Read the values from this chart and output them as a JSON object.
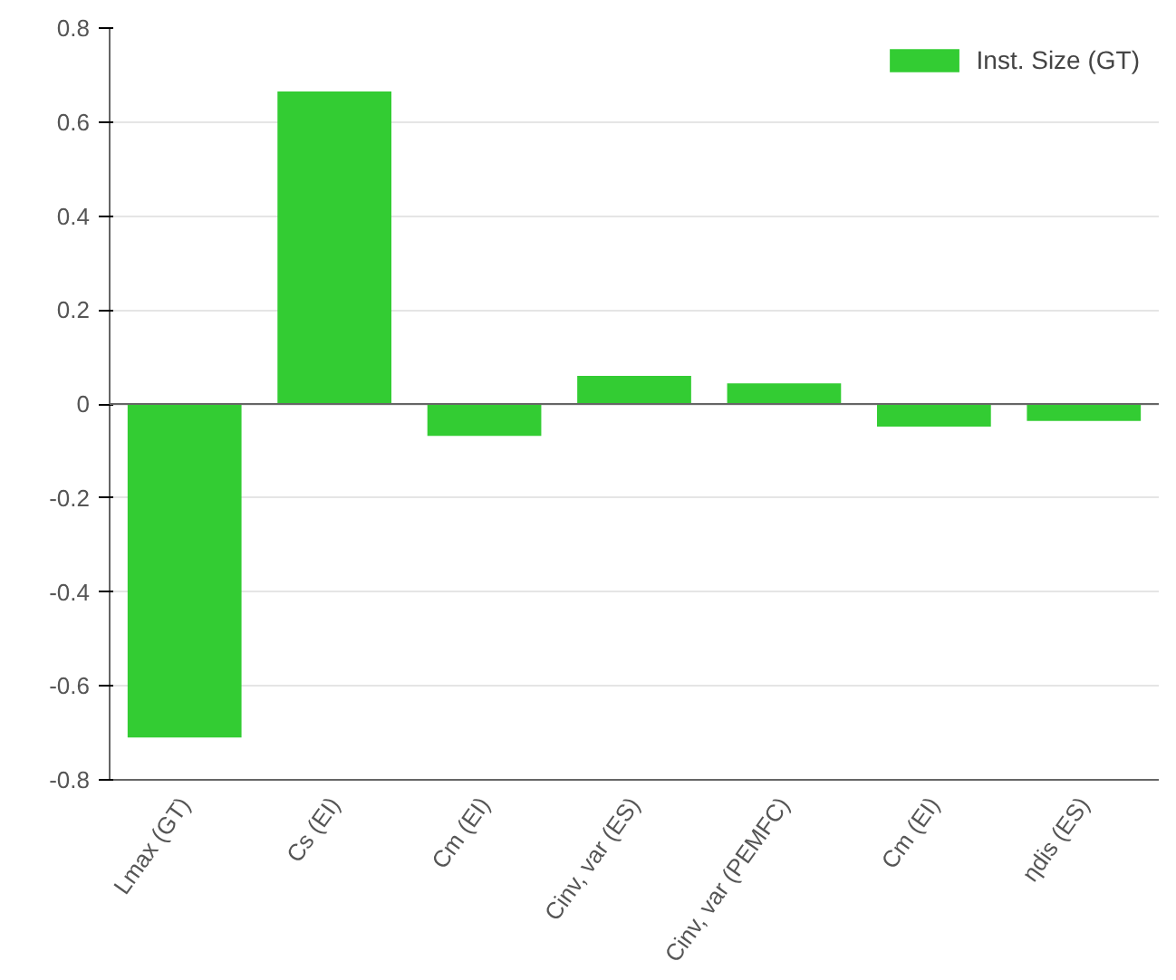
{
  "chart_data": {
    "type": "bar",
    "categories": [
      "Lmax (GT)",
      "Cs (EI)",
      "Cm (EI)",
      "Cinv, var (ES)",
      "Cinv, var (PEMFC)",
      "Cm (EI)",
      "ηdis (ES)"
    ],
    "series": [
      {
        "name": "Inst. Size (GT)",
        "color": "#33cc33",
        "values": [
          -0.71,
          0.665,
          -0.068,
          0.06,
          0.044,
          -0.048,
          -0.036
        ]
      }
    ],
    "ylim": [
      -0.8,
      0.8
    ],
    "yticks": [
      -0.8,
      -0.6,
      -0.4,
      -0.2,
      0,
      0.2,
      0.4,
      0.6,
      0.8
    ],
    "grid": "y",
    "legend": "top right"
  }
}
